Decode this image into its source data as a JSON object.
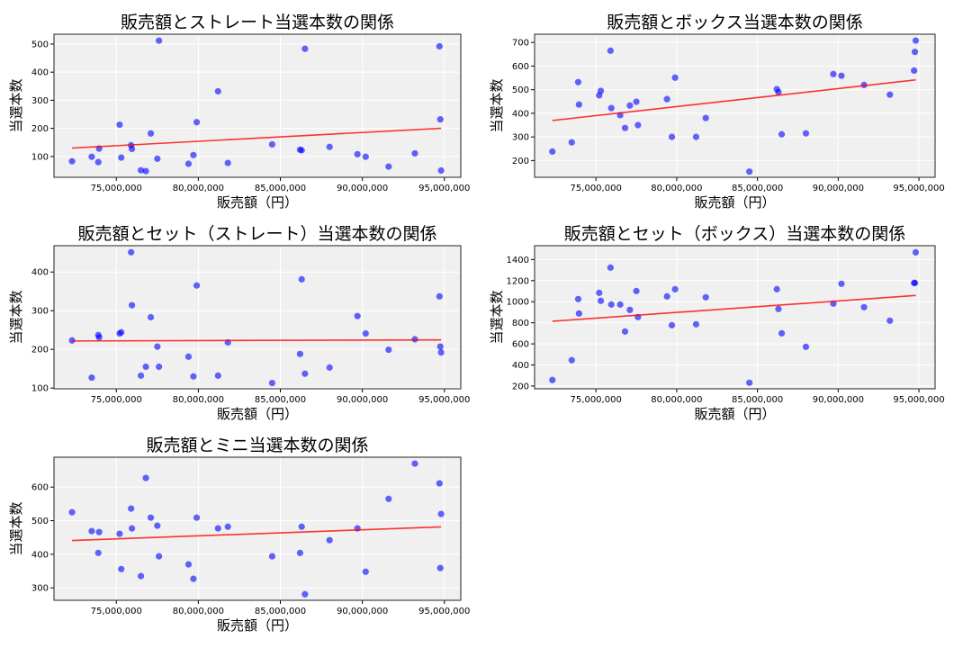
{
  "chart_data": [
    {
      "type": "scatter",
      "title": "販売額とストレート当選本数の関係",
      "xlabel": "販売額（円）",
      "ylabel": "当選本数",
      "xlim": [
        71200000,
        96000000
      ],
      "ylim": [
        26,
        535
      ],
      "xticks": [
        75000000,
        80000000,
        85000000,
        90000000,
        95000000
      ],
      "xtick_labels": [
        "75,000,000",
        "80,000,000",
        "85,000,000",
        "90,000,000",
        "95,000,000"
      ],
      "yticks": [
        100,
        200,
        300,
        400,
        500
      ],
      "values": [
        83,
        99,
        80,
        128,
        213,
        96,
        140,
        127,
        51,
        48,
        182,
        92,
        512,
        74,
        105,
        222,
        332,
        77,
        143,
        124,
        122,
        483,
        134,
        108,
        99,
        64,
        111,
        492,
        232,
        50
      ],
      "trendline": true,
      "grid": true
    },
    {
      "type": "scatter",
      "title": "販売額とボックス当選本数の関係",
      "xlabel": "販売額（円）",
      "ylabel": "当選本数",
      "xlim": [
        71200000,
        96000000
      ],
      "ylim": [
        129,
        735
      ],
      "xticks": [
        75000000,
        80000000,
        85000000,
        90000000,
        95000000
      ],
      "xtick_labels": [
        "75,000,000",
        "80,000,000",
        "85,000,000",
        "90,000,000",
        "95,000,000"
      ],
      "yticks": [
        200,
        300,
        400,
        500,
        600,
        700
      ],
      "values": [
        238,
        277,
        532,
        437,
        476,
        495,
        665,
        422,
        392,
        338,
        433,
        449,
        350,
        460,
        300,
        551,
        300,
        380,
        153,
        502,
        490,
        311,
        315,
        566,
        559,
        520,
        479,
        581,
        660,
        708
      ],
      "trendline": true,
      "grid": true
    },
    {
      "type": "scatter",
      "title": "販売額とセット（ストレート）当選本数の関係",
      "xlabel": "販売額（円）",
      "ylabel": "当選本数",
      "xlim": [
        71200000,
        96000000
      ],
      "ylim": [
        98,
        468
      ],
      "xticks": [
        75000000,
        80000000,
        85000000,
        90000000,
        95000000
      ],
      "xtick_labels": [
        "75,000,000",
        "80,000,000",
        "85,000,000",
        "90,000,000",
        "95,000,000"
      ],
      "yticks": [
        100,
        200,
        300,
        400
      ],
      "values": [
        223,
        127,
        237,
        231,
        241,
        244,
        451,
        314,
        132,
        155,
        283,
        207,
        155,
        181,
        130,
        365,
        132,
        218,
        113,
        188,
        381,
        137,
        153,
        286,
        241,
        199,
        226,
        337,
        207,
        192
      ],
      "trendline": true,
      "grid": true
    },
    {
      "type": "scatter",
      "title": "販売額とセット（ボックス）当選本数の関係",
      "xlabel": "販売額（円）",
      "ylabel": "当選本数",
      "xlim": [
        71200000,
        96000000
      ],
      "ylim": [
        174,
        1531
      ],
      "xticks": [
        75000000,
        80000000,
        85000000,
        90000000,
        95000000
      ],
      "xtick_labels": [
        "75,000,000",
        "80,000,000",
        "85,000,000",
        "90,000,000",
        "95,000,000"
      ],
      "yticks": [
        200,
        400,
        600,
        800,
        1000,
        1200,
        1400
      ],
      "values": [
        257,
        445,
        1025,
        888,
        1084,
        1008,
        1323,
        973,
        973,
        717,
        922,
        1101,
        854,
        1050,
        777,
        1118,
        786,
        1042,
        231,
        1118,
        931,
        700,
        572,
        982,
        1170,
        948,
        820,
        1178,
        1178,
        1468
      ],
      "trendline": true,
      "grid": true
    },
    {
      "type": "scatter",
      "title": "販売額とミニ当選本数の関係",
      "xlabel": "販売額（円）",
      "ylabel": "当選本数",
      "xlim": [
        71200000,
        96000000
      ],
      "ylim": [
        263,
        689
      ],
      "xticks": [
        75000000,
        80000000,
        85000000,
        90000000,
        95000000
      ],
      "xtick_labels": [
        "75,000,000",
        "80,000,000",
        "85,000,000",
        "90,000,000",
        "95,000,000"
      ],
      "yticks": [
        300,
        400,
        500,
        600
      ],
      "values": [
        525,
        469,
        404,
        466,
        461,
        356,
        536,
        477,
        335,
        627,
        509,
        485,
        394,
        370,
        327,
        509,
        477,
        482,
        394,
        404,
        482,
        281,
        442,
        477,
        348,
        565,
        670,
        611,
        359,
        520
      ],
      "trendline": true,
      "grid": true
    }
  ],
  "x_values": [
    72300000,
    73500000,
    73900000,
    73950000,
    75200000,
    75300000,
    75900000,
    75950000,
    76500000,
    76800000,
    77100000,
    77500000,
    77600000,
    79400000,
    79700000,
    79900000,
    81200000,
    81800000,
    84500000,
    86200000,
    86300000,
    86500000,
    88000000,
    89700000,
    90200000,
    91600000,
    93200000,
    94700000,
    94750000,
    94800000
  ],
  "colors": {
    "points": "#0000ff",
    "trendline": "#ff0000",
    "axes_bg": "#f0f0f0",
    "grid": "#ffffff"
  }
}
